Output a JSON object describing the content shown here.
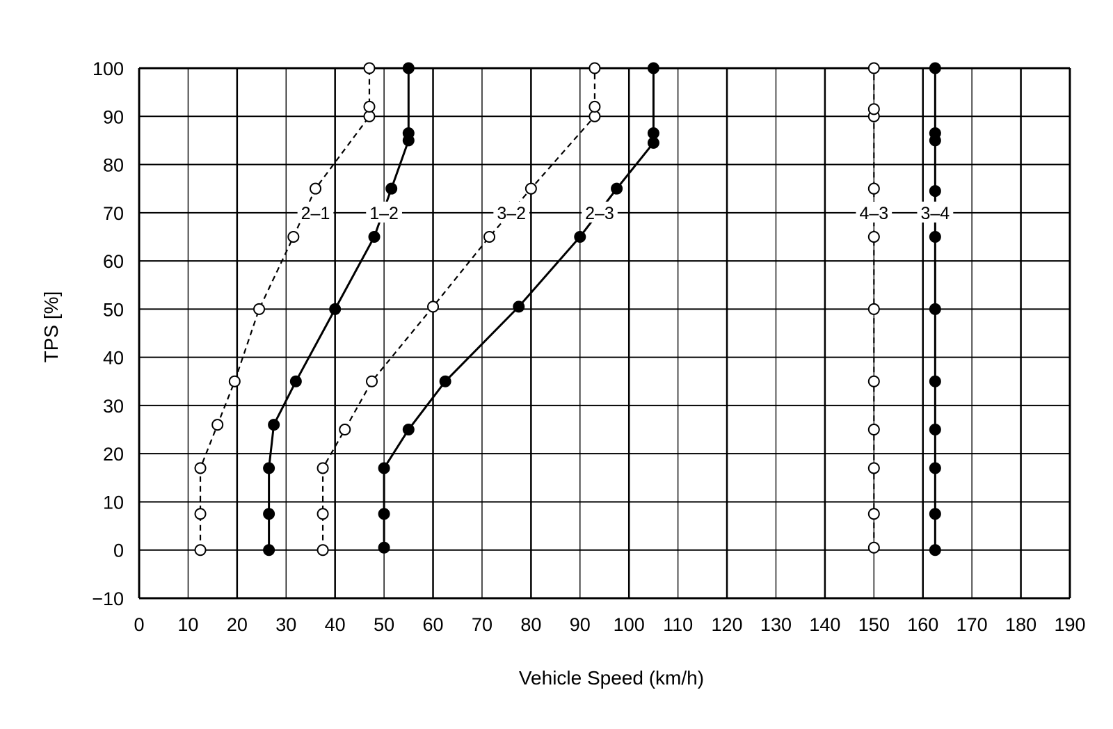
{
  "chart_data": {
    "type": "line",
    "xlabel": "Vehicle Speed (km/h)",
    "ylabel": "TPS [%]",
    "xlim": [
      0,
      190
    ],
    "ylim": [
      -10,
      100
    ],
    "xticks": [
      0,
      10,
      20,
      30,
      40,
      50,
      60,
      70,
      80,
      90,
      100,
      110,
      120,
      130,
      140,
      150,
      160,
      170,
      180,
      190
    ],
    "yticks": [
      -10,
      0,
      10,
      20,
      30,
      40,
      50,
      60,
      70,
      80,
      90,
      100
    ],
    "xtick_labels": [
      "0",
      "10",
      "20",
      "30",
      "40",
      "50",
      "60",
      "70",
      "80",
      "90",
      "100",
      "110",
      "120",
      "130",
      "140",
      "150",
      "160",
      "170",
      "180",
      "190"
    ],
    "ytick_labels": [
      "−10",
      "0",
      "10",
      "20",
      "30",
      "40",
      "50",
      "60",
      "70",
      "80",
      "90",
      "100"
    ],
    "grid": true,
    "series": [
      {
        "name": "2–1",
        "style": "dashed",
        "marker": "open",
        "label_at": [
          36,
          70
        ],
        "points": [
          [
            12.5,
            0
          ],
          [
            12.5,
            7.5
          ],
          [
            12.5,
            17
          ],
          [
            16,
            26
          ],
          [
            19.5,
            35
          ],
          [
            24.5,
            50
          ],
          [
            31.5,
            65
          ],
          [
            36,
            75
          ],
          [
            47,
            90
          ],
          [
            47,
            92
          ],
          [
            47,
            100
          ]
        ]
      },
      {
        "name": "1–2",
        "style": "solid",
        "marker": "filled",
        "label_at": [
          50,
          70
        ],
        "points": [
          [
            26.5,
            0
          ],
          [
            26.5,
            7.5
          ],
          [
            26.5,
            17
          ],
          [
            27.5,
            26
          ],
          [
            32,
            35
          ],
          [
            40,
            50
          ],
          [
            48,
            65
          ],
          [
            51.5,
            75
          ],
          [
            55,
            85
          ],
          [
            55,
            86.5
          ],
          [
            55,
            100
          ]
        ]
      },
      {
        "name": "3–2",
        "style": "dashed",
        "marker": "open",
        "label_at": [
          76,
          70
        ],
        "points": [
          [
            37.5,
            0
          ],
          [
            37.5,
            7.5
          ],
          [
            37.5,
            17
          ],
          [
            42,
            25
          ],
          [
            47.5,
            35
          ],
          [
            60,
            50.5
          ],
          [
            71.5,
            65
          ],
          [
            80,
            75
          ],
          [
            93,
            90
          ],
          [
            93,
            92
          ],
          [
            93,
            100
          ]
        ]
      },
      {
        "name": "2–3",
        "style": "solid",
        "marker": "filled",
        "label_at": [
          94,
          70
        ],
        "points": [
          [
            50,
            0.5
          ],
          [
            50,
            7.5
          ],
          [
            50,
            17
          ],
          [
            55,
            25
          ],
          [
            62.5,
            35
          ],
          [
            77.5,
            50.5
          ],
          [
            90,
            65
          ],
          [
            97.5,
            75
          ],
          [
            105,
            84.5
          ],
          [
            105,
            86.5
          ],
          [
            105,
            100
          ]
        ]
      },
      {
        "name": "4–3",
        "style": "dashed",
        "marker": "open",
        "label_at": [
          150,
          70
        ],
        "points": [
          [
            150,
            0.5
          ],
          [
            150,
            7.5
          ],
          [
            150,
            17
          ],
          [
            150,
            25
          ],
          [
            150,
            35
          ],
          [
            150,
            50
          ],
          [
            150,
            65
          ],
          [
            150,
            75
          ],
          [
            150,
            90
          ],
          [
            150,
            91.5
          ],
          [
            150,
            100
          ]
        ]
      },
      {
        "name": "3–4",
        "style": "solid",
        "marker": "filled",
        "label_at": [
          162.5,
          70
        ],
        "points": [
          [
            162.5,
            0
          ],
          [
            162.5,
            7.5
          ],
          [
            162.5,
            17
          ],
          [
            162.5,
            25
          ],
          [
            162.5,
            35
          ],
          [
            162.5,
            50
          ],
          [
            162.5,
            65
          ],
          [
            162.5,
            74.5
          ],
          [
            162.5,
            85
          ],
          [
            162.5,
            86.5
          ],
          [
            162.5,
            100
          ]
        ]
      }
    ]
  }
}
